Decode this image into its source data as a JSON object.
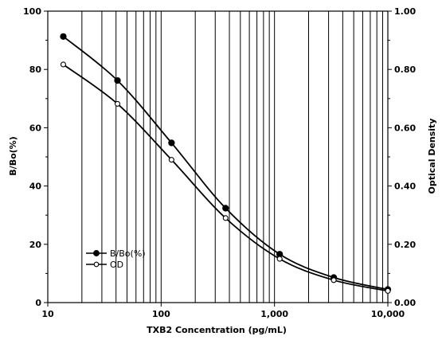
{
  "chart_data": {
    "type": "line",
    "title": "",
    "xlabel": "TXB2 Concentration (pg/mL)",
    "ylabel": "B/Bo(%)",
    "y2label": "Optical Density",
    "x_scale": "log",
    "xlim": [
      10,
      10000
    ],
    "ylim": [
      0,
      100
    ],
    "y2lim": [
      0,
      1.0
    ],
    "grid": "vertical",
    "legend_position": "bottom-left",
    "x_ticks": [
      "10",
      "100",
      "1,000",
      "10,000"
    ],
    "y_ticks": [
      "0",
      "20",
      "40",
      "60",
      "80",
      "100"
    ],
    "y2_ticks": [
      "0.00",
      "0.20",
      "0.40",
      "0.60",
      "0.80",
      "1.00"
    ],
    "x": [
      13.7,
      41.2,
      123.5,
      370.4,
      1111,
      3333,
      10000
    ],
    "series": [
      {
        "name": "B/Bo(%)",
        "axis": "left",
        "marker": "filled-circle",
        "values": [
          91.3,
          76.2,
          54.8,
          32.4,
          16.6,
          8.6,
          4.5
        ]
      },
      {
        "name": "OD",
        "axis": "right",
        "marker": "open-circle",
        "values": [
          0.817,
          0.682,
          0.49,
          0.29,
          0.15,
          0.077,
          0.04
        ]
      }
    ]
  }
}
